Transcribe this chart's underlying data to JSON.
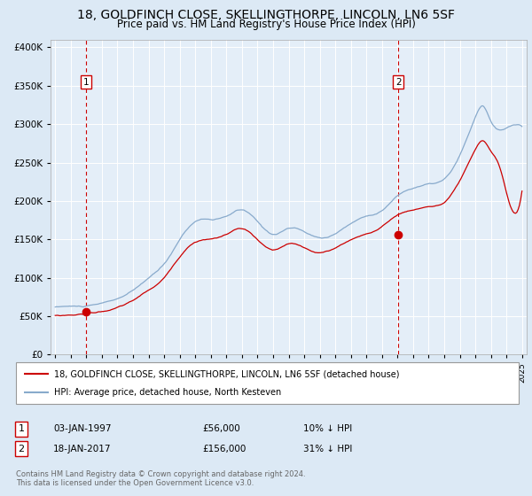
{
  "title": "18, GOLDFINCH CLOSE, SKELLINGTHORPE, LINCOLN, LN6 5SF",
  "subtitle": "Price paid vs. HM Land Registry's House Price Index (HPI)",
  "title_fontsize": 10,
  "subtitle_fontsize": 8.5,
  "bg_color": "#dce9f5",
  "plot_bg": "#e4eef8",
  "grid_color": "#ffffff",
  "red_color": "#cc0000",
  "blue_color": "#88aacc",
  "marker1_date": "03-JAN-1997",
  "marker1_price": "£56,000",
  "marker1_hpi": "10% ↓ HPI",
  "marker1_year": 1997.0,
  "marker1_value": 56000,
  "marker2_date": "18-JAN-2017",
  "marker2_price": "£156,000",
  "marker2_hpi": "31% ↓ HPI",
  "marker2_year": 2017.05,
  "marker2_value": 156000,
  "legend_line1": "18, GOLDFINCH CLOSE, SKELLINGTHORPE, LINCOLN, LN6 5SF (detached house)",
  "legend_line2": "HPI: Average price, detached house, North Kesteven",
  "footer": "Contains HM Land Registry data © Crown copyright and database right 2024.\nThis data is licensed under the Open Government Licence v3.0."
}
